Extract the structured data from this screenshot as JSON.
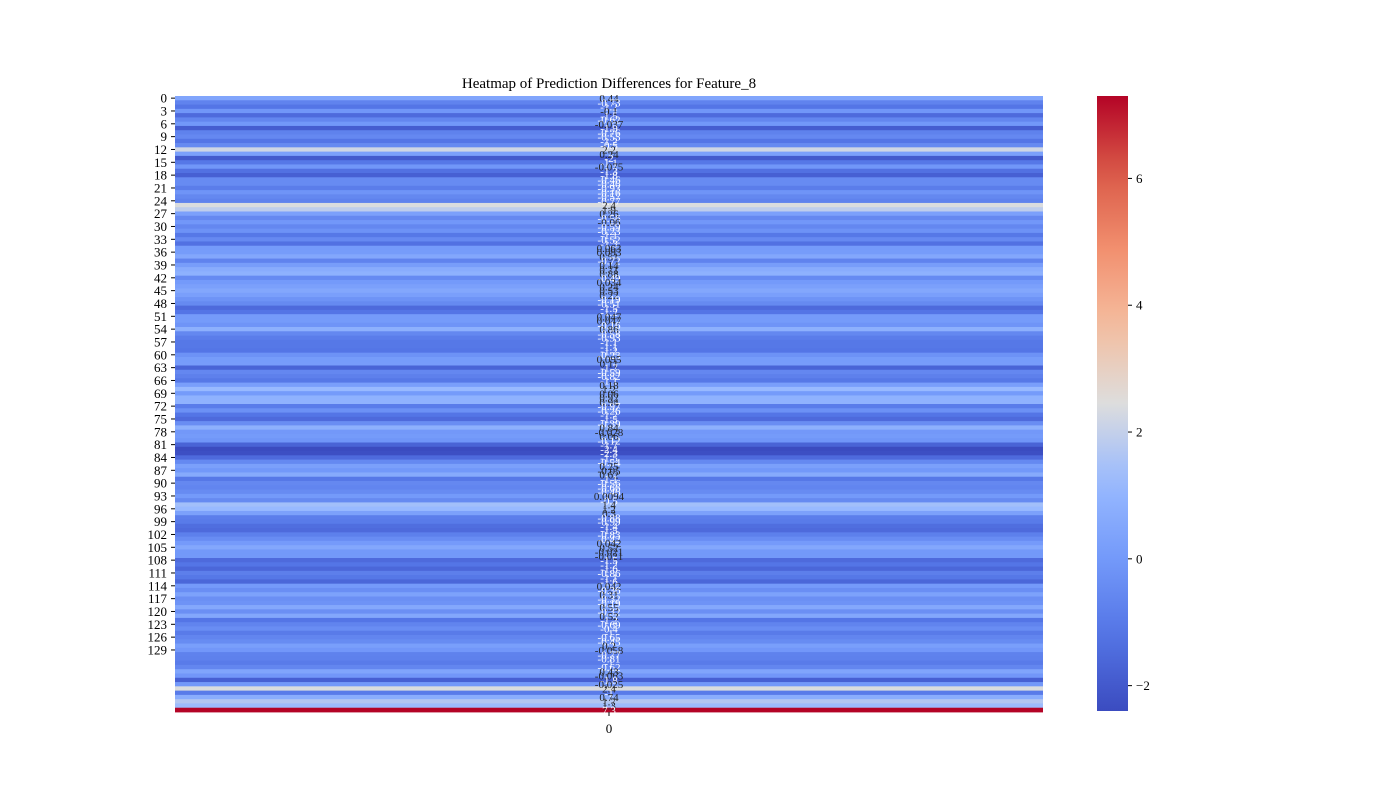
{
  "chart_data": {
    "type": "heatmap",
    "title": "Heatmap of Prediction Differences for Feature_8",
    "xlabel": "",
    "ylabel": "",
    "x_tick_labels": [
      "0"
    ],
    "y_tick_labels": [
      "0",
      "3",
      "6",
      "9",
      "12",
      "15",
      "18",
      "21",
      "24",
      "27",
      "30",
      "33",
      "36",
      "39",
      "42",
      "45",
      "48",
      "51",
      "54",
      "57",
      "60",
      "63",
      "66",
      "69",
      "72",
      "75",
      "78",
      "81",
      "84",
      "87",
      "90",
      "93",
      "96",
      "99",
      "102",
      "105",
      "108",
      "111",
      "114",
      "117",
      "120",
      "123",
      "126",
      "129"
    ],
    "values": [
      0.44,
      -0.73,
      -1.2,
      -0.1,
      -1.5,
      -0.62,
      -0.037,
      -1.9,
      -0.76,
      -0.55,
      -1.2,
      -0.5,
      2.2,
      0.24,
      -2.0,
      -1.1,
      -0.075,
      -1.3,
      -1.8,
      -0.46,
      -0.46,
      -0.93,
      -0.16,
      -0.57,
      -0.77,
      2.4,
      1.9,
      0.26,
      -0.56,
      -0.06,
      -0.59,
      -0.23,
      -1.1,
      -0.52,
      -1.3,
      0.063,
      0.093,
      0.51,
      -0.72,
      0.14,
      0.71,
      0.88,
      -0.49,
      0.034,
      0.24,
      0.53,
      0.22,
      -0.19,
      -0.51,
      -1.5,
      -1.2,
      0.047,
      0.047,
      -0.16,
      0.86,
      -0.58,
      -0.93,
      -1.1,
      -1.1,
      -1.2,
      -0.23,
      0.095,
      0.11,
      -1.7,
      -0.59,
      -0.82,
      -1.1,
      0.18,
      1.2,
      0.06,
      0.92,
      0.94,
      -0.97,
      -0.26,
      -1.2,
      -1.5,
      -0.39,
      0.84,
      -0.028,
      0.06,
      -0.12,
      -1.7,
      -2.4,
      -2.3,
      -1.5,
      -0.54,
      0.25,
      -0.05,
      0.62,
      -1.1,
      -0.56,
      -0.66,
      -0.46,
      0.0094,
      -0.5,
      1.4,
      1.2,
      0.3,
      -0.88,
      -0.99,
      -1.4,
      -1.5,
      -0.83,
      -0.42,
      0.042,
      0.52,
      -0.021,
      -0.021,
      -1.5,
      -1.2,
      -1.6,
      -0.86,
      -1.1,
      -1.6,
      0.042,
      -0.36,
      0.31,
      -0.32,
      -0.19,
      0.55,
      -0.32,
      0.52,
      -1.2,
      -0.69,
      -0.4,
      -1.0,
      -0.65,
      -0.45,
      0.2,
      -0.058,
      -0.77,
      -0.81,
      -1.0,
      -0.62,
      0.43,
      -0.063,
      -1.8,
      -0.025,
      2.4,
      -1.0,
      0.74,
      1.7,
      1.3,
      7.3
    ],
    "colorbar": {
      "colormap": "coolwarm",
      "vmin": -2.4,
      "vmax": 7.3,
      "ticks": [
        -2,
        0,
        2,
        4,
        6
      ]
    }
  }
}
